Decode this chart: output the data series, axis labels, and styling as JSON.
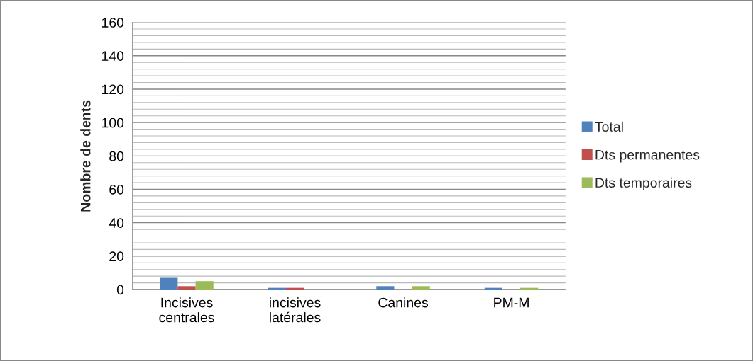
{
  "chart_data": {
    "type": "bar",
    "ylabel": "Nombre de dents",
    "categories": [
      "Incisives\ncentrales",
      "incisives\nlatérales",
      "Canines",
      "PM-M"
    ],
    "series": [
      {
        "name": "Total",
        "color": "#4f81bd",
        "values": [
          7,
          1,
          2,
          1
        ]
      },
      {
        "name": "Dts permanentes",
        "color": "#c0504d",
        "values": [
          2,
          1,
          0,
          0
        ]
      },
      {
        "name": "Dts temporaires",
        "color": "#9bbb59",
        "values": [
          5,
          0,
          2,
          1
        ]
      }
    ],
    "ylim": [
      0,
      160
    ],
    "yticks": [
      0,
      20,
      40,
      60,
      80,
      100,
      120,
      140,
      160
    ],
    "grid": "y",
    "legend": "right"
  }
}
